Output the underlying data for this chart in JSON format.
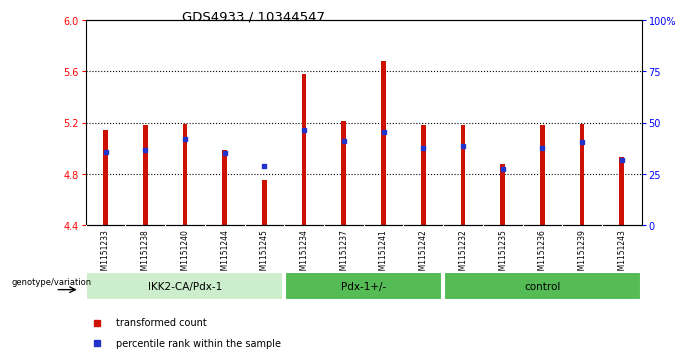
{
  "title": "GDS4933 / 10344547",
  "samples": [
    "GSM1151233",
    "GSM1151238",
    "GSM1151240",
    "GSM1151244",
    "GSM1151245",
    "GSM1151234",
    "GSM1151237",
    "GSM1151241",
    "GSM1151242",
    "GSM1151232",
    "GSM1151235",
    "GSM1151236",
    "GSM1151239",
    "GSM1151243"
  ],
  "red_values": [
    5.14,
    5.18,
    5.19,
    4.99,
    4.75,
    5.58,
    5.21,
    5.68,
    5.18,
    5.18,
    4.88,
    5.18,
    5.19,
    4.93
  ],
  "blue_values": [
    4.97,
    4.99,
    5.07,
    4.96,
    4.86,
    5.14,
    5.06,
    5.13,
    5.0,
    5.02,
    4.84,
    5.0,
    5.05,
    4.91
  ],
  "y_min": 4.4,
  "y_max": 6.0,
  "y_ticks": [
    4.4,
    4.8,
    5.2,
    5.6,
    6.0
  ],
  "y2_ticks": [
    0,
    25,
    50,
    75,
    100
  ],
  "bar_color": "#cc1100",
  "blue_color": "#2233cc",
  "group_ranges": [
    {
      "start": 0,
      "end": 4,
      "label": "IKK2-CA/Pdx-1",
      "color": "#cceecc"
    },
    {
      "start": 5,
      "end": 8,
      "label": "Pdx-1+/-",
      "color": "#55bb55"
    },
    {
      "start": 9,
      "end": 13,
      "label": "control",
      "color": "#55bb55"
    }
  ],
  "sample_area_color": "#d4d4d4",
  "genotype_label": "genotype/variation",
  "legend_red": "transformed count",
  "legend_blue": "percentile rank within the sample"
}
